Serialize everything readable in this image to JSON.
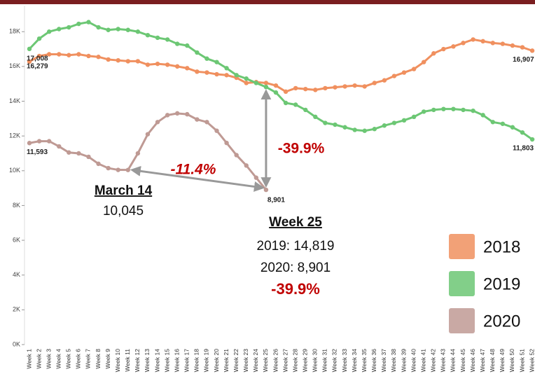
{
  "chart_data": {
    "type": "line",
    "categories": [
      "Week 1",
      "Week 2",
      "Week 3",
      "Week 4",
      "Week 5",
      "Week 6",
      "Week 7",
      "Week 8",
      "Week 9",
      "Week 10",
      "Week 11",
      "Week 12",
      "Week 13",
      "Week 14",
      "Week 15",
      "Week 16",
      "Week 17",
      "Week 18",
      "Week 19",
      "Week 20",
      "Week 21",
      "Week 22",
      "Week 23",
      "Week 24",
      "Week 25",
      "Week 26",
      "Week 27",
      "Week 28",
      "Week 29",
      "Week 30",
      "Week 31",
      "Week 32",
      "Week 33",
      "Week 34",
      "Week 35",
      "Week 36",
      "Week 37",
      "Week 38",
      "Week 39",
      "Week 40",
      "Week 41",
      "Week 42",
      "Week 43",
      "Week 44",
      "Week 45",
      "Week 46",
      "Week 47",
      "Week 48",
      "Week 49",
      "Week 50",
      "Week 51",
      "Week 52"
    ],
    "series": [
      {
        "name": "2018",
        "color": "#f0905f",
        "values": [
          16279,
          16600,
          16700,
          16700,
          16650,
          16700,
          16600,
          16550,
          16400,
          16350,
          16300,
          16300,
          16100,
          16150,
          16100,
          16000,
          15900,
          15700,
          15650,
          15550,
          15500,
          15350,
          15050,
          15100,
          15050,
          14900,
          14550,
          14750,
          14700,
          14650,
          14750,
          14800,
          14850,
          14900,
          14850,
          15050,
          15200,
          15450,
          15650,
          15850,
          16250,
          16750,
          17000,
          17150,
          17350,
          17550,
          17450,
          17350,
          17300,
          17200,
          17100,
          16907
        ],
        "value_labels": [
          "16,279",
          null,
          null,
          null,
          null,
          null,
          null,
          null,
          null,
          null,
          null,
          null,
          null,
          null,
          null,
          null,
          null,
          null,
          null,
          null,
          null,
          null,
          null,
          null,
          null,
          null,
          null,
          null,
          null,
          null,
          null,
          null,
          null,
          null,
          null,
          null,
          null,
          null,
          null,
          null,
          null,
          null,
          null,
          null,
          null,
          null,
          null,
          null,
          null,
          null,
          null,
          "16,907"
        ]
      },
      {
        "name": "2019",
        "color": "#6cc774",
        "values": [
          17008,
          17600,
          18000,
          18150,
          18250,
          18450,
          18550,
          18250,
          18100,
          18150,
          18100,
          18000,
          17800,
          17650,
          17550,
          17300,
          17200,
          16800,
          16450,
          16250,
          15900,
          15500,
          15300,
          15050,
          14819,
          14500,
          13900,
          13800,
          13500,
          13100,
          12750,
          12650,
          12500,
          12350,
          12300,
          12400,
          12600,
          12750,
          12900,
          13100,
          13400,
          13500,
          13550,
          13550,
          13500,
          13450,
          13200,
          12800,
          12700,
          12500,
          12200,
          11803
        ],
        "value_labels": [
          "17,008",
          null,
          null,
          null,
          null,
          null,
          null,
          null,
          null,
          null,
          null,
          null,
          null,
          null,
          null,
          null,
          null,
          null,
          null,
          null,
          null,
          null,
          null,
          null,
          null,
          null,
          null,
          null,
          null,
          null,
          null,
          null,
          null,
          null,
          null,
          null,
          null,
          null,
          null,
          null,
          null,
          null,
          null,
          null,
          null,
          null,
          null,
          null,
          null,
          null,
          null,
          "11,803"
        ]
      },
      {
        "name": "2020",
        "color": "#bf9a94",
        "values": [
          11593,
          11700,
          11700,
          11400,
          11050,
          11000,
          10800,
          10400,
          10150,
          10050,
          10045,
          11000,
          12100,
          12800,
          13200,
          13300,
          13250,
          12950,
          12800,
          12300,
          11600,
          10900,
          10300,
          9600,
          8901,
          null,
          null,
          null,
          null,
          null,
          null,
          null,
          null,
          null,
          null,
          null,
          null,
          null,
          null,
          null,
          null,
          null,
          null,
          null,
          null,
          null,
          null,
          null,
          null,
          null,
          null,
          null
        ],
        "value_labels": [
          "11,593",
          null,
          null,
          null,
          null,
          null,
          null,
          null,
          null,
          null,
          null,
          null,
          null,
          null,
          null,
          null,
          null,
          null,
          null,
          null,
          null,
          null,
          null,
          null,
          "8,901",
          null,
          null,
          null,
          null,
          null,
          null,
          null,
          null,
          null,
          null,
          null,
          null,
          null,
          null,
          null,
          null,
          null,
          null,
          null,
          null,
          null,
          null,
          null,
          null,
          null,
          null,
          null
        ]
      }
    ],
    "ylim": [
      0,
      19500
    ],
    "yticks": [
      {
        "value": 0,
        "label": "0K"
      },
      {
        "value": 2000,
        "label": "2K"
      },
      {
        "value": 4000,
        "label": "4K"
      },
      {
        "value": 6000,
        "label": "6K"
      },
      {
        "value": 8000,
        "label": "8K"
      },
      {
        "value": 10000,
        "label": "10K"
      },
      {
        "value": 12000,
        "label": "12K"
      },
      {
        "value": 14000,
        "label": "14K"
      },
      {
        "value": 16000,
        "label": "16K"
      },
      {
        "value": 18000,
        "label": "18K"
      }
    ],
    "grid": false,
    "legend": "bottom-right",
    "annotations": [
      "-11.4%",
      "-39.9%",
      "March 14",
      "10,045",
      "Week 25",
      "2019: 14,819",
      "2020: 8,901",
      "-39.9%"
    ]
  }
}
